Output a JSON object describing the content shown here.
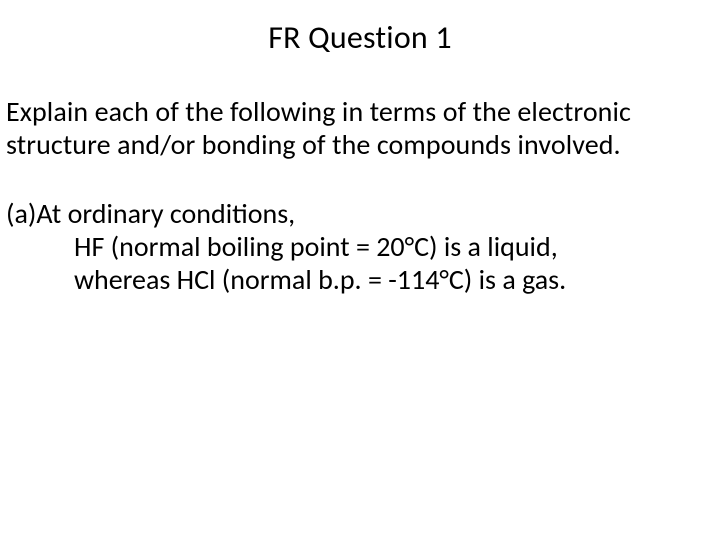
{
  "slide": {
    "title": "FR Question 1",
    "prompt": "Explain each of the following in terms of the electronic structure and/or bonding of the compounds involved.",
    "part_a": {
      "label": "(a)At ordinary conditions,",
      "line2": "HF (normal boiling point = 20°C) is a liquid,",
      "line3": "whereas HCl (normal b.p. = -114°C) is a gas."
    }
  },
  "style": {
    "background_color": "#ffffff",
    "text_color": "#000000",
    "title_fontsize": 32,
    "body_fontsize": 28,
    "font_family": "Calibri"
  }
}
